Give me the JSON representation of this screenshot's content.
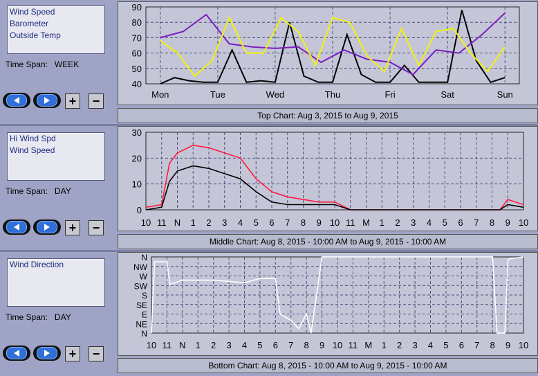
{
  "panels": [
    {
      "series": [
        "Wind Speed",
        "Barometer",
        "Outside Temp"
      ],
      "timespan_label": "Time Span:",
      "timespan_value": "WEEK",
      "caption": "Top Chart:  Aug 3, 2015  to  Aug 9, 2015"
    },
    {
      "series": [
        "Hi Wind Spd",
        "Wind Speed"
      ],
      "timespan_label": "Time Span:",
      "timespan_value": "DAY",
      "caption": "Middle Chart:  Aug 8, 2015 - 10:00 AM  to  Aug 9, 2015 - 10:00 AM"
    },
    {
      "series": [
        "Wind Direction"
      ],
      "timespan_label": "Time Span:",
      "timespan_value": "DAY",
      "caption": "Bottom Chart:  Aug 8, 2015 - 10:00 AM  to  Aug 9, 2015 - 10:00 AM"
    }
  ],
  "controls": {
    "plus_label": "+",
    "minus_label": "−",
    "prev_icon": "left-arrow-icon",
    "next_icon": "right-arrow-icon"
  },
  "colors": {
    "wind": "#000000",
    "barometer": "#7a1fc0",
    "temp": "#f2f20a",
    "hi_wind": "#ff1a3c",
    "direction": "#ffffff",
    "grid": "#4a4f7a"
  },
  "chart_data": [
    {
      "type": "line",
      "title": "",
      "x_ticks": [
        "Mon",
        "Tue",
        "Wed",
        "Thu",
        "Fri",
        "Sat",
        "Sun"
      ],
      "ylim": [
        40,
        90
      ],
      "y_ticks": [
        "40",
        "50",
        "60",
        "70",
        "80",
        "90"
      ],
      "series": [
        {
          "color": "#000000",
          "x": [
            0,
            0.25,
            0.5,
            0.75,
            1,
            1.25,
            1.5,
            1.75,
            2,
            2.25,
            2.5,
            2.75,
            3,
            3.25,
            3.5,
            3.75,
            4,
            4.25,
            4.5,
            4.75,
            5,
            5.25,
            5.5,
            5.75,
            6
          ],
          "values": [
            40,
            44,
            42,
            41,
            41,
            62,
            41,
            42,
            41,
            80,
            45,
            41,
            41,
            72,
            46,
            41,
            41,
            52,
            41,
            41,
            41,
            88,
            55,
            41,
            44
          ]
        },
        {
          "color": "#7a1fc0",
          "x": [
            0,
            0.4,
            0.8,
            1.2,
            1.6,
            2,
            2.4,
            2.8,
            3.2,
            3.6,
            4,
            4.4,
            4.8,
            5.2,
            5.6,
            6
          ],
          "values": [
            70,
            74,
            85,
            66,
            64,
            63,
            64,
            54,
            62,
            56,
            54,
            46,
            62,
            60,
            72,
            86
          ]
        },
        {
          "color": "#f2f20a",
          "x": [
            0,
            0.3,
            0.6,
            0.9,
            1.2,
            1.5,
            1.8,
            2.1,
            2.4,
            2.7,
            3,
            3.3,
            3.6,
            3.9,
            4.2,
            4.5,
            4.8,
            5.1,
            5.4,
            5.7,
            6
          ],
          "values": [
            68,
            60,
            45,
            55,
            83,
            60,
            60,
            83,
            74,
            52,
            83,
            80,
            58,
            48,
            76,
            52,
            74,
            76,
            60,
            48,
            64
          ]
        }
      ]
    },
    {
      "type": "line",
      "title": "",
      "x_ticks": [
        "10",
        "11",
        "N",
        "1",
        "2",
        "3",
        "4",
        "5",
        "6",
        "7",
        "8",
        "9",
        "10",
        "11",
        "M",
        "1",
        "2",
        "3",
        "4",
        "5",
        "6",
        "7",
        "8",
        "9",
        "10"
      ],
      "ylim": [
        0,
        30
      ],
      "y_ticks": [
        "0",
        "10",
        "20",
        "30"
      ],
      "series": [
        {
          "color": "#ff1a3c",
          "x": [
            0,
            1,
            1.5,
            2,
            3,
            4,
            5,
            6,
            7,
            8,
            9,
            10,
            11,
            12,
            13,
            14,
            15,
            16,
            17,
            18,
            19,
            20,
            21,
            22,
            22.5,
            23,
            24
          ],
          "values": [
            1,
            2,
            18,
            22,
            25,
            24,
            22,
            20,
            12,
            7,
            5,
            4,
            3,
            3,
            0,
            0,
            0,
            0,
            0,
            0,
            0,
            0,
            0,
            0,
            0,
            4,
            2
          ]
        },
        {
          "color": "#000000",
          "x": [
            0,
            1,
            1.5,
            2,
            3,
            4,
            5,
            6,
            7,
            8,
            9,
            10,
            11,
            12,
            13,
            14,
            15,
            16,
            17,
            18,
            19,
            20,
            21,
            22,
            22.5,
            23,
            24
          ],
          "values": [
            0,
            1,
            11,
            15,
            17,
            16,
            14,
            12,
            7,
            3,
            2,
            2,
            2,
            2,
            0,
            0,
            0,
            0,
            0,
            0,
            0,
            0,
            0,
            0,
            0,
            2,
            1
          ]
        }
      ]
    },
    {
      "type": "line",
      "title": "",
      "x_ticks": [
        "10",
        "11",
        "N",
        "1",
        "2",
        "3",
        "4",
        "5",
        "6",
        "7",
        "8",
        "9",
        "10",
        "11",
        "M",
        "1",
        "2",
        "3",
        "4",
        "5",
        "6",
        "7",
        "8",
        "9",
        "10"
      ],
      "y_ticks": [
        "N",
        "NE",
        "E",
        "SE",
        "S",
        "SW",
        "W",
        "NW",
        "N"
      ],
      "ylim": [
        0,
        360
      ],
      "series": [
        {
          "color": "#ffffff",
          "x": [
            0,
            0.2,
            1,
            1.2,
            2,
            4,
            6,
            7,
            8,
            8.3,
            9,
            9.5,
            10,
            10.3,
            11,
            12,
            13,
            14,
            15,
            16,
            17,
            18,
            19,
            20,
            21,
            22,
            22.3,
            22.8,
            23,
            24
          ],
          "values": [
            0,
            337,
            337,
            230,
            250,
            250,
            238,
            258,
            258,
            90,
            60,
            20,
            90,
            0,
            360,
            360,
            360,
            360,
            360,
            360,
            360,
            360,
            360,
            360,
            360,
            360,
            0,
            0,
            350,
            360
          ]
        }
      ]
    }
  ]
}
